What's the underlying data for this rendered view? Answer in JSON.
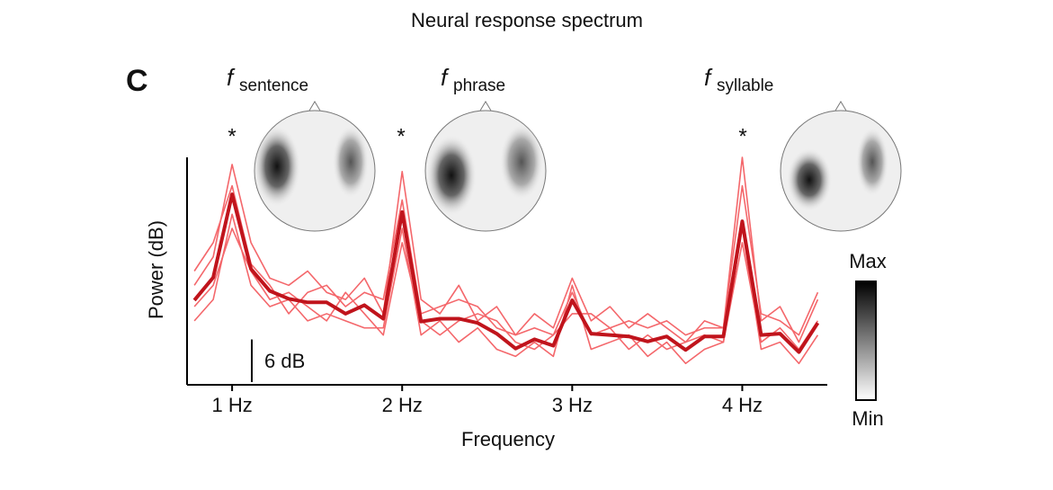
{
  "chart_data": {
    "type": "line",
    "title": "Neural response spectrum",
    "panel_label": "C",
    "xlabel": "Frequency",
    "ylabel": "Power (dB)",
    "xlim": [
      0.735,
      4.5
    ],
    "ylim": [
      0,
      32
    ],
    "xticks": [
      {
        "value": 1,
        "label": "1 Hz"
      },
      {
        "value": 2,
        "label": "2 Hz"
      },
      {
        "value": 3,
        "label": "3 Hz"
      },
      {
        "value": 4,
        "label": "4 Hz"
      }
    ],
    "x": [
      0.778,
      0.889,
      1,
      1.111,
      1.222,
      1.333,
      1.444,
      1.556,
      1.667,
      1.778,
      1.889,
      2,
      2.111,
      2.222,
      2.333,
      2.444,
      2.556,
      2.667,
      2.778,
      2.889,
      3,
      3.111,
      3.222,
      3.333,
      3.444,
      3.556,
      3.667,
      3.778,
      3.889,
      4,
      4.111,
      4.222,
      4.333,
      4.444
    ],
    "series": [
      {
        "color": "#f4676b",
        "values": [
          14,
          18,
          31,
          20,
          15,
          14,
          16,
          13,
          12,
          15,
          10,
          30,
          12,
          10,
          14,
          9,
          11,
          7,
          10,
          8,
          15,
          9,
          11,
          8,
          10,
          8,
          6,
          9,
          8,
          32,
          9,
          11,
          6,
          12
        ]
      },
      {
        "color": "#f4676b",
        "values": [
          9,
          12,
          24,
          14,
          11,
          12,
          9,
          10,
          9,
          8,
          8,
          22,
          7,
          9,
          6,
          8,
          5,
          4,
          6,
          4,
          14,
          5,
          6,
          7,
          4,
          6,
          3,
          5,
          6,
          22,
          5,
          6,
          3,
          7
        ]
      },
      {
        "color": "#f4676b",
        "values": [
          16,
          20,
          28,
          17,
          14,
          10,
          13,
          14,
          11,
          13,
          12,
          26,
          10,
          11,
          12,
          11,
          8,
          7,
          8,
          7,
          10,
          10,
          8,
          9,
          8,
          9,
          7,
          8,
          8,
          28,
          10,
          9,
          7,
          13
        ]
      },
      {
        "color": "#f4676b",
        "values": [
          11,
          14,
          22,
          16,
          12,
          13,
          11,
          9,
          13,
          10,
          7,
          20,
          9,
          7,
          9,
          10,
          9,
          6,
          5,
          7,
          13,
          7,
          8,
          5,
          7,
          5,
          6,
          7,
          6,
          20,
          6,
          8,
          5,
          9
        ]
      },
      {
        "color": "#c0141c",
        "values": [
          11.9,
          15.1,
          26.8,
          16.3,
          13.2,
          12.1,
          11.6,
          11.6,
          10.0,
          11.2,
          9.3,
          24.3,
          8.9,
          9.3,
          9.3,
          8.7,
          7.2,
          5.1,
          6.4,
          5.5,
          11.9,
          7.2,
          7.0,
          6.8,
          6.1,
          6.8,
          4.9,
          6.8,
          6.8,
          23.0,
          7.0,
          7.2,
          4.6,
          8.7
        ]
      }
    ],
    "scale_bar": {
      "value": 6,
      "label": "6 dB"
    },
    "annotations": [
      {
        "symbol": "f",
        "subscript": "sentence",
        "marker": "*"
      },
      {
        "symbol": "f",
        "subscript": "phrase",
        "marker": "*"
      },
      {
        "symbol": "f",
        "subscript": "syllable",
        "marker": "*"
      }
    ],
    "colorbar": {
      "max_label": "Max",
      "min_label": "Min"
    }
  }
}
